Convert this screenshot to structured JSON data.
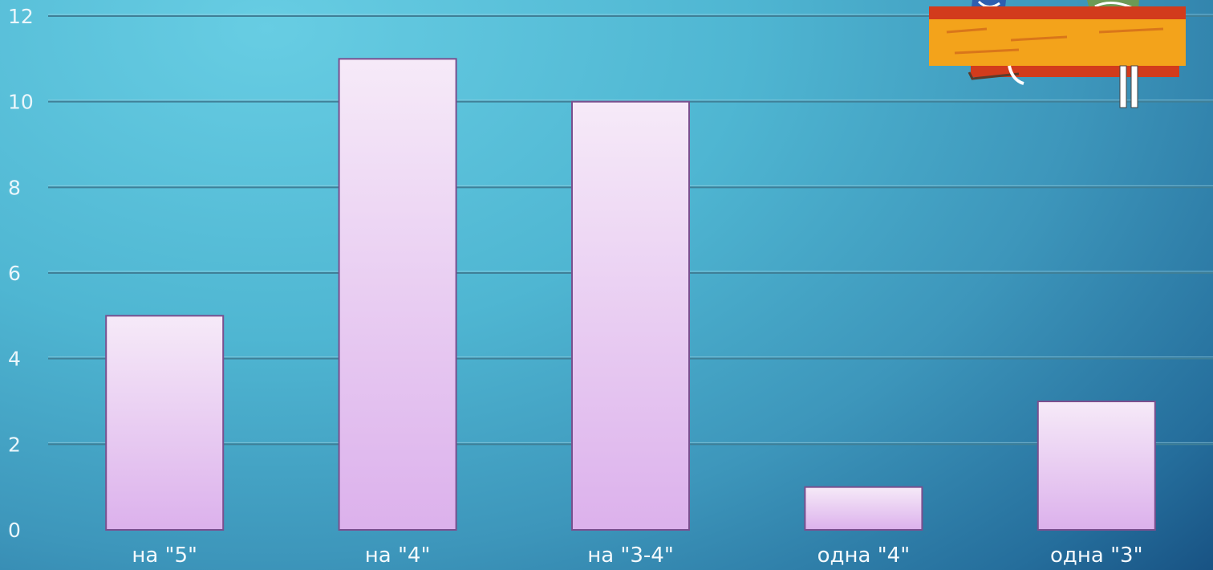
{
  "chart_data": {
    "type": "bar",
    "title": "",
    "xlabel": "",
    "ylabel": "",
    "categories": [
      "на \"5\"",
      "на \"4\"",
      "на \"3-4\"",
      "одна \"4\"",
      "одна \"3\""
    ],
    "values": [
      5,
      11,
      10,
      1,
      3
    ],
    "ylim": [
      0,
      12
    ],
    "yticks": [
      "0",
      "2",
      "4",
      "6",
      "8",
      "10",
      "12"
    ],
    "grid": true,
    "legend": "none",
    "colors": {
      "bar_top": "#f6eaf8",
      "bar_bottom": "#dcb1ec",
      "bar_border": "#7a4f8e",
      "grid": "#3f7f97"
    }
  },
  "decor": {
    "clipart": "school-desk-illustration"
  }
}
